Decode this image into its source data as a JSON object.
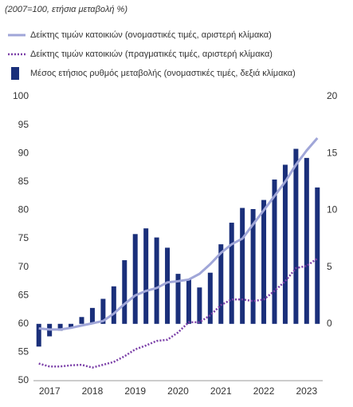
{
  "chart_data": {
    "type": "bar_line",
    "subtitle": "(2007=100, ετήσια μεταβολή %)",
    "categories": [
      null,
      "2017",
      null,
      null,
      null,
      "2018",
      null,
      null,
      null,
      "2019",
      null,
      null,
      null,
      "2020",
      null,
      null,
      null,
      "2021",
      null,
      null,
      null,
      "2022",
      null,
      null,
      null,
      "2023",
      null
    ],
    "series": [
      {
        "name": "Δείκτης τιμών κατοικιών (ονομαστικές τιμές, αριστερή κλίμακα)",
        "kind": "line",
        "color": "#a0a6d8",
        "axis": "y",
        "values": [
          59.2,
          59.0,
          59.0,
          59.3,
          59.7,
          60.1,
          60.5,
          61.8,
          63.5,
          65.0,
          65.8,
          66.3,
          67.3,
          67.5,
          67.8,
          68.8,
          70.5,
          72.5,
          74.0,
          75.0,
          77.5,
          80.0,
          82.5,
          85.0,
          88.0,
          90.5,
          92.7
        ]
      },
      {
        "name": "Δείκτης τιμών κατοικιών (πραγματικές τιμές, αριστερή κλίμακα)",
        "kind": "dotted",
        "color": "#7b3fa8",
        "axis": "y",
        "values": [
          53.0,
          52.5,
          52.5,
          52.7,
          52.8,
          52.3,
          52.8,
          53.3,
          54.3,
          55.5,
          56.2,
          57.0,
          57.2,
          58.5,
          60.3,
          60.3,
          61.5,
          63.3,
          64.3,
          64.3,
          64.0,
          64.3,
          65.8,
          67.5,
          69.8,
          70.2,
          71.5
        ]
      },
      {
        "name": "Μέσος ετήσιος ρυθμός μεταβολής (ονομαστικές τιμές, δεξιά κλίμακα)",
        "kind": "bar",
        "color": "#1a2f7a",
        "axis": "y2",
        "values": [
          -2.0,
          -1.1,
          -0.6,
          -0.4,
          0.6,
          1.4,
          2.2,
          3.3,
          5.6,
          7.9,
          8.4,
          7.6,
          6.7,
          4.4,
          3.9,
          3.2,
          4.5,
          7.0,
          8.9,
          10.2,
          10.1,
          10.9,
          12.7,
          14.0,
          15.4,
          14.6,
          12.0
        ]
      }
    ],
    "ylim": [
      50,
      100
    ],
    "yticks": [
      50,
      55,
      60,
      65,
      70,
      75,
      80,
      85,
      90,
      95,
      100
    ],
    "y2lim": [
      -5,
      20
    ],
    "y2ticks": [
      0,
      5,
      10,
      15,
      20
    ]
  }
}
